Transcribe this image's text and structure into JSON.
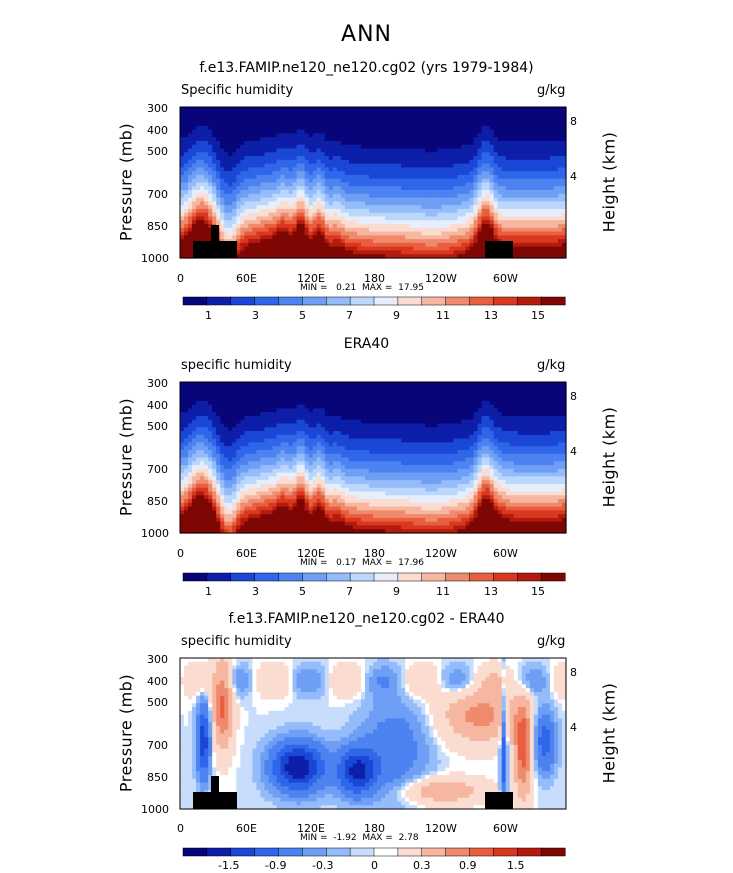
{
  "page_title": "ANN",
  "chart_data": [
    {
      "type": "heatmap",
      "title": "f.e13.FAMIP.ne120_ne120.cg02 (yrs 1979-1984)",
      "variable_label": "Specific humidity",
      "units": "g/kg",
      "ylabel": "Pressure (mb)",
      "ylabel_right": "Height (km)",
      "x_ticks": [
        "0",
        "60E",
        "120E",
        "180",
        "120W",
        "60W"
      ],
      "y_ticks": [
        "300",
        "400",
        "500",
        "700",
        "850",
        "1000"
      ],
      "y_right_ticks": [
        "8",
        "4"
      ],
      "min_label": "MIN =",
      "min_value": "0.21",
      "max_label": "MAX =",
      "max_value": "17.95",
      "colorbar_ticks": [
        "1",
        "3",
        "5",
        "7",
        "9",
        "11",
        "13",
        "15"
      ],
      "ylim": [
        1000,
        300
      ]
    },
    {
      "type": "heatmap",
      "title": "ERA40",
      "variable_label": "specific humidity",
      "units": "g/kg",
      "ylabel": "Pressure (mb)",
      "ylabel_right": "Height (km)",
      "x_ticks": [
        "0",
        "60E",
        "120E",
        "180",
        "120W",
        "60W"
      ],
      "y_ticks": [
        "300",
        "400",
        "500",
        "700",
        "850",
        "1000"
      ],
      "y_right_ticks": [
        "8",
        "4"
      ],
      "min_label": "MIN =",
      "min_value": "0.17",
      "max_label": "MAX =",
      "max_value": "17.96",
      "colorbar_ticks": [
        "1",
        "3",
        "5",
        "7",
        "9",
        "11",
        "13",
        "15"
      ],
      "ylim": [
        1000,
        300
      ]
    },
    {
      "type": "heatmap",
      "title": "f.e13.FAMIP.ne120_ne120.cg02 - ERA40",
      "variable_label": "specific humidity",
      "units": "g/kg",
      "ylabel": "Pressure (mb)",
      "ylabel_right": "Height (km)",
      "x_ticks": [
        "0",
        "60E",
        "120E",
        "180",
        "120W",
        "60W"
      ],
      "y_ticks": [
        "300",
        "400",
        "500",
        "700",
        "850",
        "1000"
      ],
      "y_right_ticks": [
        "8",
        "4"
      ],
      "min_label": "MIN =",
      "min_value": "-1.92",
      "max_label": "MAX =",
      "max_value": "2.78",
      "colorbar_ticks": [
        "-1.5",
        "-0.9",
        "-0.3",
        "0",
        "0.3",
        "0.9",
        "1.5"
      ],
      "ylim": [
        1000,
        300
      ]
    }
  ],
  "colors": {
    "mean_palette": [
      "#08047a",
      "#0d1fa8",
      "#1a47d6",
      "#2f66ea",
      "#4c83f0",
      "#6e9ff5",
      "#94bcfa",
      "#bcd7fc",
      "#e6eefb",
      "#fbdcd0",
      "#f6b7a0",
      "#ef8a6d",
      "#e85e3e",
      "#d9381f",
      "#b41a0e",
      "#7e0703"
    ],
    "diff_palette": [
      "#08047a",
      "#0d1fa8",
      "#1a47d6",
      "#2f66ea",
      "#4c83f0",
      "#6e9ff5",
      "#94bcfa",
      "#c7ddfb",
      "#ffffff",
      "#fbdcd0",
      "#f6b7a0",
      "#ef8a6d",
      "#e85e3e",
      "#d9381f",
      "#b41a0e",
      "#7e0703"
    ],
    "topography": "#000000"
  }
}
